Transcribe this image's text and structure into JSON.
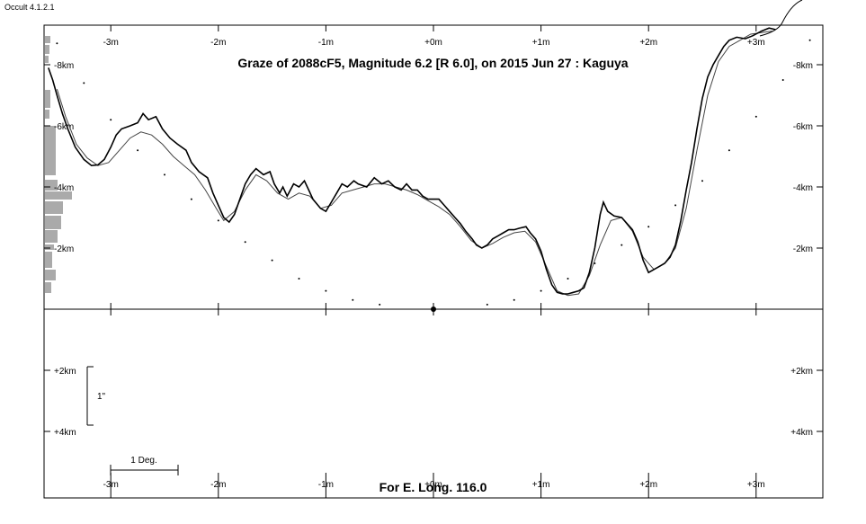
{
  "app": {
    "version_label": "Occult 4.1.2.1"
  },
  "chart_data": {
    "type": "line",
    "title": "Graze of  2088cF5,  Magnitude 6.2 [R 6.0],  on 2015 Jun 27  :  Kaguya",
    "footer": "For E. Long. 116.0",
    "x_unit": "minutes of arc along limb",
    "x_ticks": [
      "-3m",
      "-2m",
      "-1m",
      "+0m",
      "+1m",
      "+2m",
      "+3m"
    ],
    "x_tick_values": [
      -3,
      -2,
      -1,
      0,
      1,
      2,
      3
    ],
    "y_ticks_upper": [
      "-8km",
      "-6km",
      "-4km",
      "-2km"
    ],
    "y_tick_values_upper": [
      -8,
      -6,
      -4,
      -2
    ],
    "y_ticks_lower": [
      "+2km",
      "+4km"
    ],
    "y_tick_values_lower": [
      2,
      4
    ],
    "xlim": [
      -3.6,
      3.6
    ],
    "ylim": [
      -10,
      6
    ],
    "scale_bar_vertical": "1\"",
    "scale_bar_horizontal": "1 Deg.",
    "series": [
      {
        "name": "",
        "style": "bold",
        "points": [
          [
            -3.58,
            -7.9
          ],
          [
            -3.54,
            -7.5
          ],
          [
            -3.5,
            -7.0
          ],
          [
            -3.45,
            -6.4
          ],
          [
            -3.4,
            -5.9
          ],
          [
            -3.33,
            -5.3
          ],
          [
            -3.25,
            -4.9
          ],
          [
            -3.18,
            -4.7
          ],
          [
            -3.12,
            -4.72
          ],
          [
            -3.06,
            -4.9
          ],
          [
            -3.0,
            -5.3
          ],
          [
            -2.95,
            -5.7
          ],
          [
            -2.9,
            -5.9
          ],
          [
            -2.82,
            -6.0
          ],
          [
            -2.75,
            -6.1
          ],
          [
            -2.7,
            -6.4
          ],
          [
            -2.65,
            -6.2
          ],
          [
            -2.58,
            -6.3
          ],
          [
            -2.52,
            -5.9
          ],
          [
            -2.45,
            -5.6
          ],
          [
            -2.38,
            -5.4
          ],
          [
            -2.3,
            -5.2
          ],
          [
            -2.25,
            -4.8
          ],
          [
            -2.18,
            -4.5
          ],
          [
            -2.1,
            -4.3
          ],
          [
            -2.05,
            -3.8
          ],
          [
            -2.0,
            -3.4
          ],
          [
            -1.95,
            -3.0
          ],
          [
            -1.9,
            -2.85
          ],
          [
            -1.85,
            -3.1
          ],
          [
            -1.8,
            -3.6
          ],
          [
            -1.75,
            -4.1
          ],
          [
            -1.7,
            -4.4
          ],
          [
            -1.65,
            -4.6
          ],
          [
            -1.58,
            -4.4
          ],
          [
            -1.52,
            -4.5
          ],
          [
            -1.48,
            -4.1
          ],
          [
            -1.43,
            -3.8
          ],
          [
            -1.4,
            -4.0
          ],
          [
            -1.36,
            -3.7
          ],
          [
            -1.3,
            -4.1
          ],
          [
            -1.25,
            -4.0
          ],
          [
            -1.2,
            -4.2
          ],
          [
            -1.16,
            -3.9
          ],
          [
            -1.12,
            -3.6
          ],
          [
            -1.05,
            -3.3
          ],
          [
            -1.0,
            -3.2
          ],
          [
            -0.95,
            -3.5
          ],
          [
            -0.9,
            -3.8
          ],
          [
            -0.85,
            -4.1
          ],
          [
            -0.8,
            -4.0
          ],
          [
            -0.74,
            -4.2
          ],
          [
            -0.7,
            -4.1
          ],
          [
            -0.62,
            -4.0
          ],
          [
            -0.55,
            -4.3
          ],
          [
            -0.48,
            -4.1
          ],
          [
            -0.42,
            -4.2
          ],
          [
            -0.36,
            -4.0
          ],
          [
            -0.3,
            -3.9
          ],
          [
            -0.25,
            -4.1
          ],
          [
            -0.2,
            -3.9
          ],
          [
            -0.15,
            -3.9
          ],
          [
            -0.1,
            -3.7
          ],
          [
            -0.05,
            -3.6
          ],
          [
            0.0,
            -3.6
          ],
          [
            0.05,
            -3.6
          ],
          [
            0.1,
            -3.4
          ],
          [
            0.15,
            -3.2
          ],
          [
            0.2,
            -3.0
          ],
          [
            0.25,
            -2.8
          ],
          [
            0.3,
            -2.55
          ],
          [
            0.36,
            -2.3
          ],
          [
            0.4,
            -2.1
          ],
          [
            0.45,
            -2.0
          ],
          [
            0.5,
            -2.1
          ],
          [
            0.55,
            -2.3
          ],
          [
            0.6,
            -2.4
          ],
          [
            0.65,
            -2.5
          ],
          [
            0.7,
            -2.6
          ],
          [
            0.75,
            -2.6
          ],
          [
            0.8,
            -2.65
          ],
          [
            0.86,
            -2.7
          ],
          [
            0.9,
            -2.5
          ],
          [
            0.95,
            -2.3
          ],
          [
            1.0,
            -1.9
          ],
          [
            1.05,
            -1.3
          ],
          [
            1.1,
            -0.8
          ],
          [
            1.15,
            -0.55
          ],
          [
            1.2,
            -0.5
          ],
          [
            1.25,
            -0.5
          ],
          [
            1.3,
            -0.55
          ],
          [
            1.35,
            -0.6
          ],
          [
            1.4,
            -0.7
          ],
          [
            1.45,
            -1.2
          ],
          [
            1.5,
            -2.0
          ],
          [
            1.55,
            -3.1
          ],
          [
            1.58,
            -3.5
          ],
          [
            1.62,
            -3.2
          ],
          [
            1.68,
            -3.05
          ],
          [
            1.75,
            -3.0
          ],
          [
            1.8,
            -2.8
          ],
          [
            1.85,
            -2.6
          ],
          [
            1.9,
            -2.2
          ],
          [
            1.95,
            -1.6
          ],
          [
            2.0,
            -1.2
          ],
          [
            2.05,
            -1.3
          ],
          [
            2.1,
            -1.4
          ],
          [
            2.15,
            -1.5
          ],
          [
            2.2,
            -1.7
          ],
          [
            2.25,
            -2.1
          ],
          [
            2.3,
            -2.9
          ],
          [
            2.35,
            -3.9
          ],
          [
            2.4,
            -4.8
          ],
          [
            2.45,
            -5.9
          ],
          [
            2.5,
            -6.9
          ],
          [
            2.55,
            -7.6
          ],
          [
            2.6,
            -8.0
          ],
          [
            2.65,
            -8.3
          ],
          [
            2.7,
            -8.6
          ],
          [
            2.75,
            -8.8
          ],
          [
            2.82,
            -8.9
          ],
          [
            2.9,
            -8.85
          ],
          [
            2.97,
            -8.95
          ],
          [
            3.05,
            -9.1
          ],
          [
            3.12,
            -9.2
          ],
          [
            3.18,
            -9.15
          ]
        ]
      },
      {
        "name": "",
        "style": "thin",
        "points": [
          [
            -3.5,
            -7.2
          ],
          [
            -3.42,
            -6.3
          ],
          [
            -3.32,
            -5.4
          ],
          [
            -3.22,
            -4.95
          ],
          [
            -3.12,
            -4.7
          ],
          [
            -3.02,
            -4.8
          ],
          [
            -2.92,
            -5.2
          ],
          [
            -2.82,
            -5.6
          ],
          [
            -2.72,
            -5.8
          ],
          [
            -2.62,
            -5.7
          ],
          [
            -2.52,
            -5.4
          ],
          [
            -2.42,
            -5.0
          ],
          [
            -2.32,
            -4.7
          ],
          [
            -2.22,
            -4.4
          ],
          [
            -2.12,
            -3.9
          ],
          [
            -2.02,
            -3.3
          ],
          [
            -1.95,
            -2.9
          ],
          [
            -1.85,
            -3.2
          ],
          [
            -1.75,
            -3.9
          ],
          [
            -1.65,
            -4.4
          ],
          [
            -1.55,
            -4.2
          ],
          [
            -1.45,
            -3.8
          ],
          [
            -1.35,
            -3.6
          ],
          [
            -1.25,
            -3.8
          ],
          [
            -1.15,
            -3.7
          ],
          [
            -1.05,
            -3.3
          ],
          [
            -0.95,
            -3.4
          ],
          [
            -0.85,
            -3.8
          ],
          [
            -0.75,
            -3.9
          ],
          [
            -0.65,
            -4.0
          ],
          [
            -0.55,
            -4.1
          ],
          [
            -0.45,
            -4.1
          ],
          [
            -0.35,
            -4.0
          ],
          [
            -0.25,
            -3.9
          ],
          [
            -0.15,
            -3.75
          ],
          [
            -0.05,
            -3.55
          ],
          [
            0.05,
            -3.35
          ],
          [
            0.15,
            -3.1
          ],
          [
            0.25,
            -2.7
          ],
          [
            0.35,
            -2.25
          ],
          [
            0.45,
            -2.0
          ],
          [
            0.55,
            -2.15
          ],
          [
            0.65,
            -2.35
          ],
          [
            0.75,
            -2.5
          ],
          [
            0.85,
            -2.55
          ],
          [
            0.95,
            -2.2
          ],
          [
            1.05,
            -1.4
          ],
          [
            1.15,
            -0.6
          ],
          [
            1.25,
            -0.45
          ],
          [
            1.35,
            -0.5
          ],
          [
            1.45,
            -1.1
          ],
          [
            1.55,
            -2.1
          ],
          [
            1.65,
            -2.9
          ],
          [
            1.75,
            -3.0
          ],
          [
            1.85,
            -2.55
          ],
          [
            1.95,
            -1.7
          ],
          [
            2.05,
            -1.3
          ],
          [
            2.15,
            -1.5
          ],
          [
            2.25,
            -2.0
          ],
          [
            2.35,
            -3.3
          ],
          [
            2.45,
            -5.2
          ],
          [
            2.55,
            -7.0
          ],
          [
            2.65,
            -8.1
          ],
          [
            2.75,
            -8.6
          ],
          [
            2.85,
            -8.8
          ],
          [
            2.95,
            -9.0
          ],
          [
            3.05,
            -9.05
          ],
          [
            3.15,
            -9.1
          ]
        ]
      },
      {
        "name": "",
        "style": "dotted",
        "points": [
          [
            -3.5,
            -8.7
          ],
          [
            -3.25,
            -7.4
          ],
          [
            -3.0,
            -6.2
          ],
          [
            -2.75,
            -5.2
          ],
          [
            -2.5,
            -4.4
          ],
          [
            -2.25,
            -3.6
          ],
          [
            -2.0,
            -2.9
          ],
          [
            -1.75,
            -2.2
          ],
          [
            -1.5,
            -1.6
          ],
          [
            -1.25,
            -1.0
          ],
          [
            -1.0,
            -0.6
          ],
          [
            -0.75,
            -0.3
          ],
          [
            -0.5,
            -0.15
          ],
          [
            0.0,
            0.0
          ],
          [
            0.5,
            -0.15
          ],
          [
            0.75,
            -0.3
          ],
          [
            1.0,
            -0.6
          ],
          [
            1.25,
            -1.0
          ],
          [
            1.5,
            -1.5
          ],
          [
            1.75,
            -2.1
          ],
          [
            2.0,
            -2.7
          ],
          [
            2.25,
            -3.4
          ],
          [
            2.5,
            -4.2
          ],
          [
            2.75,
            -5.2
          ],
          [
            3.0,
            -6.3
          ],
          [
            3.25,
            -7.5
          ],
          [
            3.5,
            -8.8
          ]
        ]
      }
    ],
    "reference_point": [
      0,
      0
    ]
  }
}
